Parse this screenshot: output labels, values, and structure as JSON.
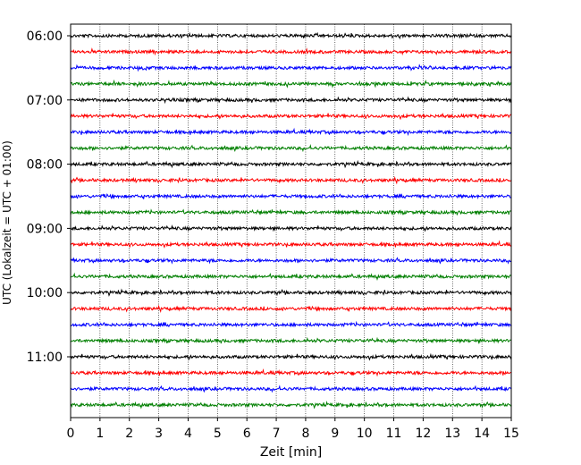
{
  "chart_data": {
    "type": "line",
    "title": "",
    "xlabel": "Zeit  [min]",
    "ylabel": "UTC (Lokalzeit = UTC + 01:00)",
    "xlim": [
      0,
      15
    ],
    "x_ticks": [
      0,
      1,
      2,
      3,
      4,
      5,
      6,
      7,
      8,
      9,
      10,
      11,
      12,
      13,
      14,
      15
    ],
    "y_ticks": [
      {
        "label": "06:00",
        "trace": 0
      },
      {
        "label": "07:00",
        "trace": 4
      },
      {
        "label": "08:00",
        "trace": 8
      },
      {
        "label": "09:00",
        "trace": 12
      },
      {
        "label": "10:00",
        "trace": 16
      },
      {
        "label": "11:00",
        "trace": 20
      }
    ],
    "grid": "vertical dotted",
    "trace_interval_min": 15,
    "color_cycle": [
      "#000000",
      "#ff0000",
      "#0000ff",
      "#007f00"
    ],
    "traces": [
      {
        "start": "06:00"
      },
      {
        "start": "06:15"
      },
      {
        "start": "06:30"
      },
      {
        "start": "06:45"
      },
      {
        "start": "07:00"
      },
      {
        "start": "07:15"
      },
      {
        "start": "07:30"
      },
      {
        "start": "07:45"
      },
      {
        "start": "08:00"
      },
      {
        "start": "08:15"
      },
      {
        "start": "08:30"
      },
      {
        "start": "08:45"
      },
      {
        "start": "09:00"
      },
      {
        "start": "09:15"
      },
      {
        "start": "09:30"
      },
      {
        "start": "09:45"
      },
      {
        "start": "10:00"
      },
      {
        "start": "10:15"
      },
      {
        "start": "10:30"
      },
      {
        "start": "10:45"
      },
      {
        "start": "11:00"
      },
      {
        "start": "11:15"
      },
      {
        "start": "11:30"
      },
      {
        "start": "11:45"
      }
    ]
  }
}
